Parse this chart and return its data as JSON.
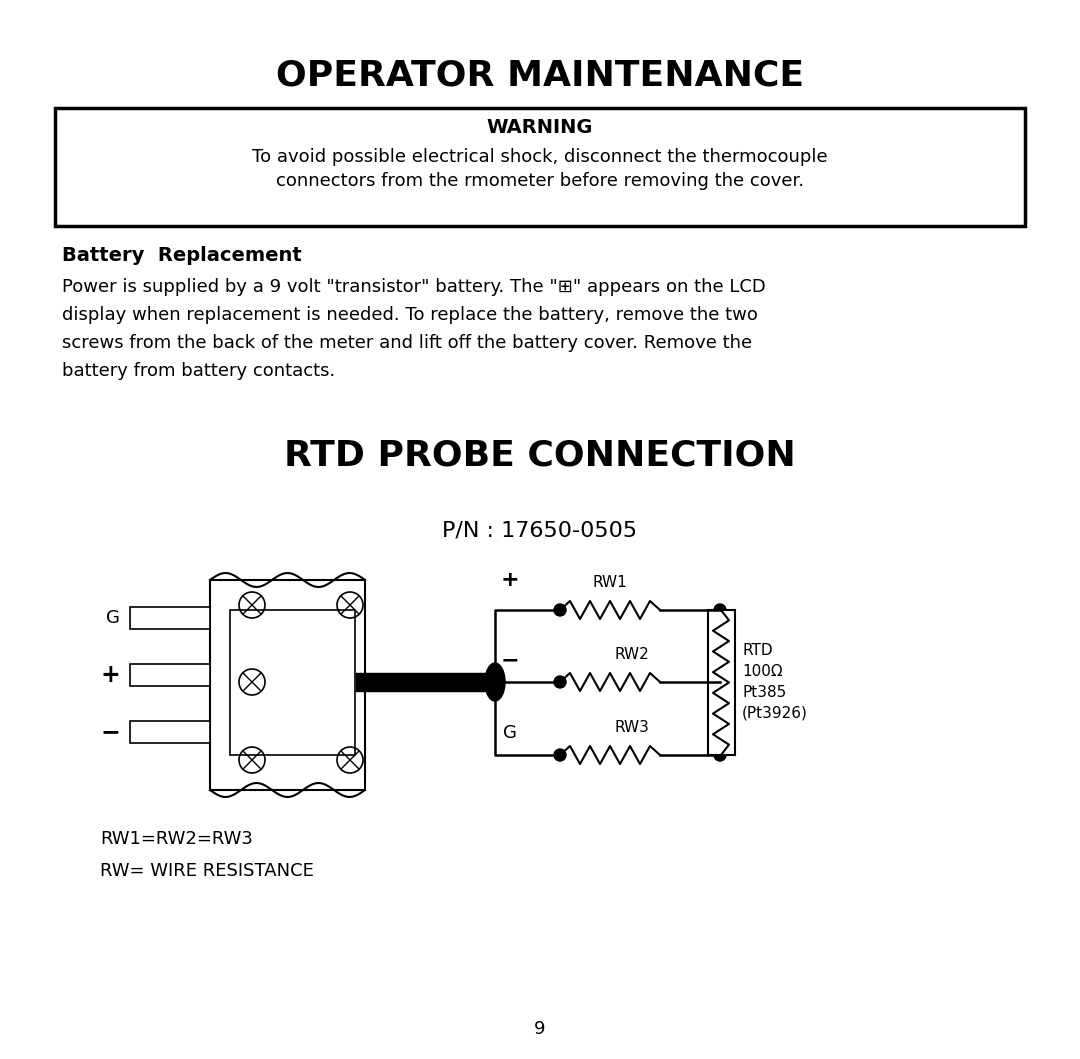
{
  "title": "OPERATOR MAINTENANCE",
  "warning_title": "WARNING",
  "warning_line1": "To avoid possible electrical shock, disconnect the thermocouple",
  "warning_line2": "connectors from the rmometer before removing the cover.",
  "battery_header": "Battery  Replacement",
  "battery_line1": "Power is supplied by a 9 volt \"transistor\" battery. The \"⊞\" appears on the LCD",
  "battery_line2": "display when replacement is needed. To replace the battery, remove the two",
  "battery_line3": "screws from the back of the meter and lift off the battery cover. Remove the",
  "battery_line4": "battery from battery contacts.",
  "rtd_title": "RTD PROBE CONNECTION",
  "pn_label": "P/N : 17650-0505",
  "wire_label1": "RW1=RW2=RW3",
  "wire_label2": "RW= WIRE RESISTANCE",
  "page_number": "9",
  "bg_color": "#ffffff",
  "text_color": "#000000",
  "rtd_note": "RTD\n100Ω\nPt385\n(Pt3926)"
}
